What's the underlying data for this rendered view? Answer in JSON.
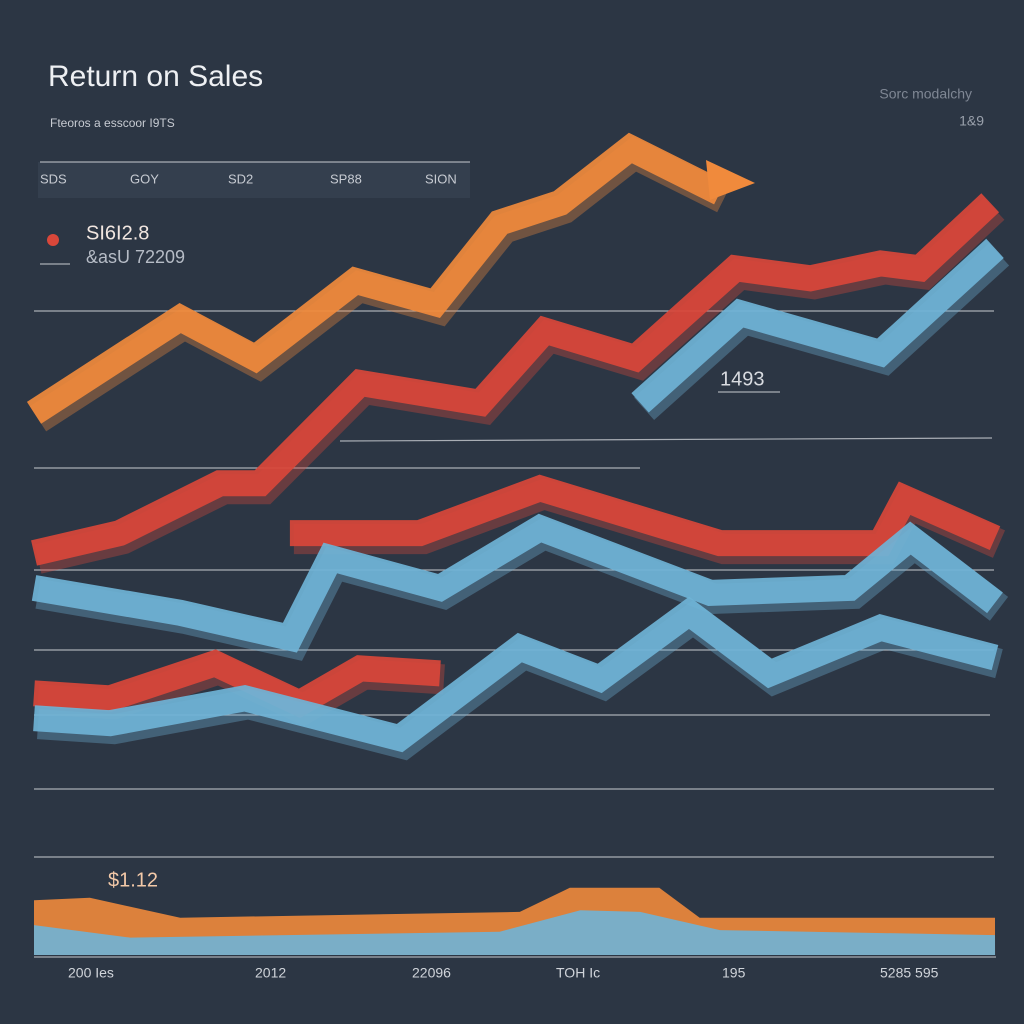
{
  "chart_data": {
    "type": "line",
    "title": "Return on Sales",
    "subtitle": "Fteoros a esscoor I9TS",
    "corner_label": "Sorc modalchy",
    "corner_value": "1&9",
    "header_labels": [
      "SDS",
      "GOY",
      "SD2",
      "SP88",
      "SION"
    ],
    "annotations": [
      "SI6I2.8",
      "&asU 72209",
      "1493",
      "$1.12"
    ],
    "x_labels": [
      "200 Ies",
      "2012",
      "22096",
      "TOH Ic",
      "195",
      "5285 595"
    ],
    "xlim": [
      0,
      100
    ],
    "ylim": [
      0,
      100
    ],
    "series": [
      {
        "color": "#f08a3c",
        "x": [
          0,
          15.2,
          23,
          33.4,
          41.7,
          48.4,
          54.7,
          62,
          71.3
        ],
        "values": [
          67.5,
          78.9,
          74.1,
          83.4,
          80.7,
          90.4,
          92.8,
          99.4,
          94
        ]
      },
      {
        "color": "#d9473a",
        "x": [
          0,
          8.9,
          19.3,
          23.5,
          33.9,
          46.4,
          53.1,
          62.5,
          72.9,
          80.7,
          88,
          92.1,
          99.4
        ],
        "values": [
          50.6,
          53,
          59,
          59,
          71.1,
          68.7,
          77.4,
          74.1,
          84.9,
          83.7,
          85.5,
          84.9,
          92.8
        ]
      },
      {
        "color": "#6fb3d6",
        "x": [
          63,
          73.4,
          88,
          99.9
        ],
        "values": [
          68.7,
          79.5,
          74.7,
          87.3
        ]
      },
      {
        "color": "#d9473a",
        "x": [
          26.6,
          40.1,
          52.6,
          71.3,
          88,
          90.5,
          99.9
        ],
        "values": [
          53,
          53,
          58.4,
          51.8,
          51.8,
          57.2,
          52.4
        ]
      },
      {
        "color": "#6fb3d6",
        "x": [
          0,
          15.2,
          26.6,
          30.8,
          42.2,
          52.6,
          70.3,
          84.8,
          91.1,
          99.9
        ],
        "values": [
          46.4,
          43.4,
          40.4,
          50,
          46.4,
          53.6,
          45.8,
          46.4,
          52.4,
          44.6
        ]
      },
      {
        "color": "#d9473a",
        "x": [
          0,
          7.9,
          18.8,
          27.6,
          33.9,
          42.2
        ],
        "values": [
          33.7,
          33.1,
          37.3,
          32.5,
          36.7,
          36.1
        ]
      },
      {
        "color": "#6fb3d6",
        "x": [
          0,
          7.9,
          21.9,
          38,
          50.5,
          58.8,
          68.1,
          76.5,
          88,
          99.9
        ],
        "values": [
          30.7,
          30.1,
          33.1,
          28.3,
          39.2,
          35.5,
          43.4,
          36.1,
          41.6,
          38
        ]
      },
      {
        "color": "#f08a3c",
        "area": true,
        "x": [
          0,
          5.8,
          15.2,
          50.5,
          55.7,
          65,
          69.2,
          99.9
        ],
        "values": [
          7.2,
          7.5,
          5.1,
          5.8,
          8.7,
          8.7,
          5.1,
          5.1
        ]
      },
      {
        "color": "#6fb3d6",
        "area": true,
        "x": [
          0,
          10,
          48.4,
          56.8,
          63,
          71.3,
          99.9
        ],
        "values": [
          4.2,
          2.7,
          3.4,
          6,
          5.8,
          3.6,
          3
        ]
      }
    ]
  }
}
